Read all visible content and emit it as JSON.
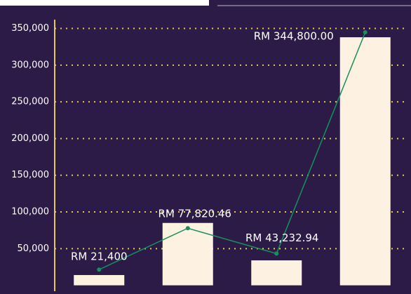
{
  "chart_data": {
    "type": "bar",
    "ylim": [
      -8000,
      362000
    ],
    "yticks": [
      {
        "value": 50000,
        "label": "50,000"
      },
      {
        "value": 100000,
        "label": "100,000"
      },
      {
        "value": 150000,
        "label": "150,000"
      },
      {
        "value": 200000,
        "label": "200,000"
      },
      {
        "value": 250000,
        "label": "250,000"
      },
      {
        "value": 300000,
        "label": "300,000"
      },
      {
        "value": 350000,
        "label": "350,000"
      }
    ],
    "grid": true,
    "grid_color": "#e9c94b",
    "series": [
      {
        "type": "bar",
        "color": "#fdf1e2",
        "values": [
          14000,
          85000,
          34000,
          338000
        ]
      },
      {
        "type": "line",
        "color": "#16905f",
        "values": [
          21400,
          77820.46,
          43232.94,
          344800
        ],
        "value_labels": [
          "RM 21,400",
          "RM 77,820.46",
          "RM 43,232.94",
          "RM 344,800.00"
        ]
      }
    ]
  }
}
